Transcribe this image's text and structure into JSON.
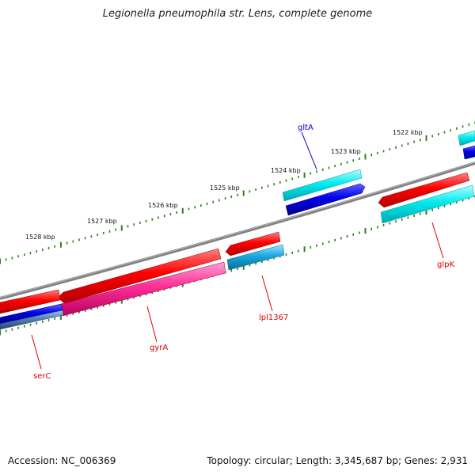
{
  "title": "Legionella pneumophila str. Lens, complete genome",
  "footer": {
    "accession": "Accession: NC_006369",
    "summary": "Topology: circular; Length: 3,345,687 bp; Genes: 2,931"
  },
  "ruler": {
    "labels": [
      "1528 kbp",
      "1527 kbp",
      "1526 kbp",
      "1525 kbp",
      "1524 kbp",
      "1523 kbp",
      "1522 kbp"
    ],
    "tick_color": "#2e7d1e"
  },
  "colors": {
    "backbone": "#7a7a7a",
    "cds_red": "#ff0000",
    "cds_cyan": "#00e5ee",
    "cds_blue": "#0000ee",
    "cds_pink": "#ff3399",
    "cds_skyblue": "#1aa6e0",
    "label_red": "#dd0000",
    "label_blue": "#0000cc"
  },
  "genes": [
    {
      "name": "gltA",
      "color": "#0000cc"
    },
    {
      "name": "glpK",
      "color": "#dd0000"
    },
    {
      "name": "lpl1367",
      "color": "#dd0000"
    },
    {
      "name": "gyrA",
      "color": "#dd0000"
    },
    {
      "name": "serC",
      "color": "#dd0000"
    }
  ]
}
